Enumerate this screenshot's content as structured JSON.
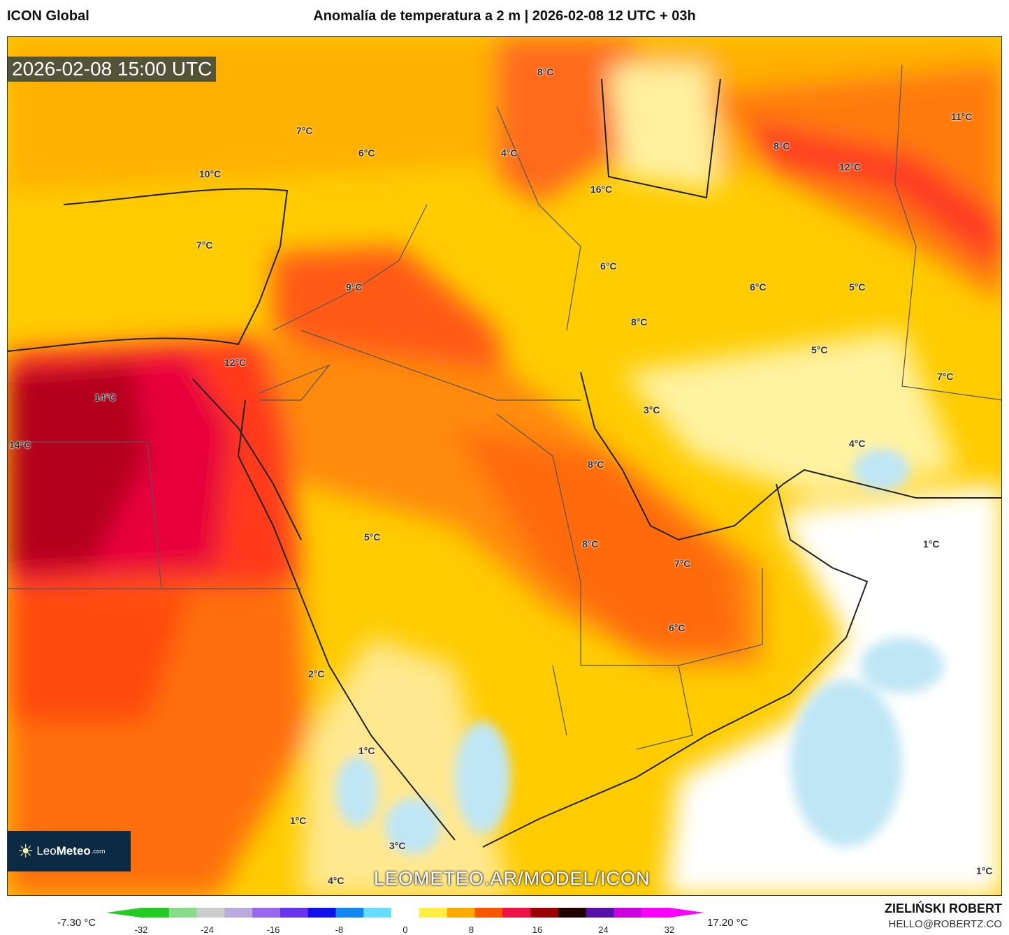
{
  "header": {
    "model": "ICON Global",
    "title": "Anomalía de temperatura a 2 m | 2026-02-08 12 UTC + 03h"
  },
  "map": {
    "valid_time": "2026-02-08 15:00 UTC",
    "labels": [
      "8°C",
      "11°C",
      "7°C",
      "6°C",
      "4°C",
      "8°C",
      "12°C",
      "10°C",
      "16°C",
      "7°C",
      "6°C",
      "9°C",
      "6°C",
      "5°C",
      "8°C",
      "5°C",
      "12°C",
      "14°C",
      "7°C",
      "3°C",
      "14°C",
      "4°C",
      "8°C",
      "1°C",
      "5°C",
      "8°C",
      "7°C",
      "6°C",
      "2°C",
      "1°C",
      "1°C",
      "3°C",
      "4°C",
      "1°C"
    ],
    "watermark": "LEOMETEO.AR/MODEL/ICON",
    "logo": {
      "name": "Leo",
      "bold": "Meteo",
      "suffix": ".com"
    }
  },
  "colorbar": {
    "min_label": "-7.30 °C",
    "max_label": "17.20 °C",
    "ticks": [
      "-32",
      "-24",
      "-16",
      "-8",
      "0",
      "8",
      "16",
      "24",
      "32"
    ],
    "colors": [
      "#22cc22",
      "#88dd88",
      "#cccccc",
      "#bbaadd",
      "#9966ee",
      "#6633ee",
      "#1111ee",
      "#1188ee",
      "#66ddff",
      "#ffffff",
      "#ffee44",
      "#ffaa00",
      "#ff5500",
      "#ee1144",
      "#990000",
      "#220000",
      "#5511aa",
      "#cc00dd",
      "#ff00ff"
    ]
  },
  "footer": {
    "author": "ZIELIŃSKI ROBERT",
    "email": "HELLO@ROBERTZ.CO"
  }
}
